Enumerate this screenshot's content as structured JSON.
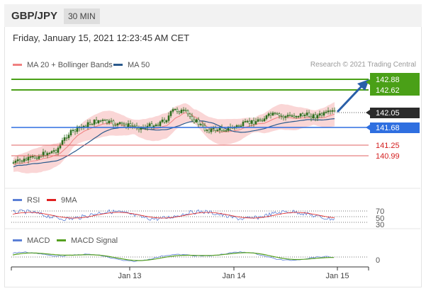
{
  "header": {
    "symbol": "GBP/JPY",
    "timeframe": "30 MIN"
  },
  "datetime": "Friday, January 15, 2021 12:23:45 AM CET",
  "legend": {
    "bollinger": {
      "label": "MA 20 + Bollinger Bands",
      "color": "#f08080"
    },
    "ma50": {
      "label": "MA 50",
      "color": "#2b5a8c"
    }
  },
  "copyright": "Research © 2021 Trading Central",
  "price_levels": [
    {
      "value": "142.88",
      "kind": "resistance"
    },
    {
      "value": "142.62",
      "kind": "resistance"
    },
    {
      "value": "142.05",
      "kind": "current"
    },
    {
      "value": "141.68",
      "kind": "pivot"
    },
    {
      "value": "141.25",
      "kind": "support"
    },
    {
      "value": "140.99",
      "kind": "support"
    }
  ],
  "rsi": {
    "label": "RSI",
    "ma_label": "9MA",
    "ticks": [
      "70",
      "50",
      "30"
    ],
    "color": "#5b7fd6",
    "ma_color": "#e02020"
  },
  "macd": {
    "label": "MACD",
    "signal_label": "MACD Signal",
    "tick": "0",
    "color": "#5b7fd6",
    "signal_color": "#55a020"
  },
  "x_axis": {
    "ticks": [
      "Jan 13",
      "Jan 14",
      "Jan 15"
    ]
  },
  "colors": {
    "resistance": "#4aa017",
    "pivot": "#2f6fe0",
    "current": "#2b2b2b",
    "support": "#e06060",
    "candle": "#2e6e1e",
    "arrow": "#2a5fa8"
  }
}
